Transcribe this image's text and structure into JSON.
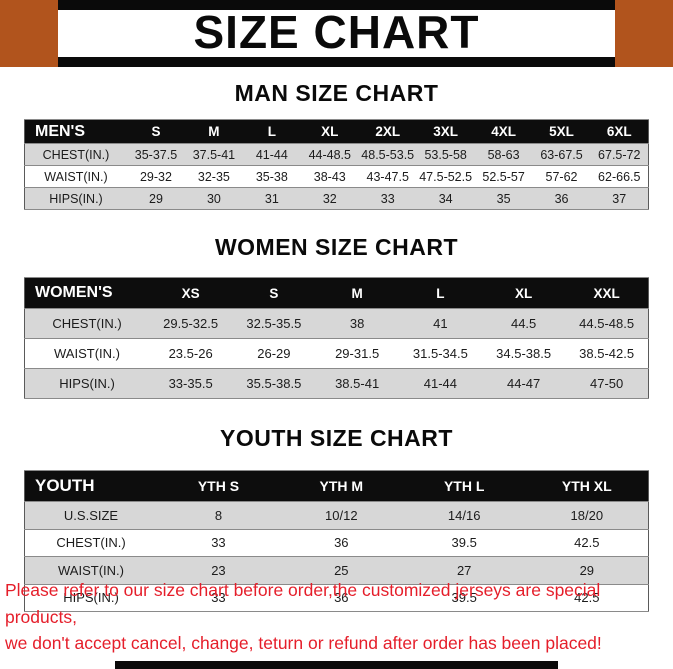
{
  "title": "SIZE CHART",
  "colors": {
    "accent_orange": "#b1541d",
    "header_black": "#0d0d0d",
    "row_shade_gray": "#d7d7d7",
    "footer_red": "#e51e2a"
  },
  "sections": [
    {
      "heading": "MAN SIZE CHART",
      "table": {
        "header": [
          "MEN'S",
          "S",
          "M",
          "L",
          "XL",
          "2XL",
          "3XL",
          "4XL",
          "5XL",
          "6XL"
        ],
        "rows": [
          [
            "CHEST(IN.)",
            "35-37.5",
            "37.5-41",
            "41-44",
            "44-48.5",
            "48.5-53.5",
            "53.5-58",
            "58-63",
            "63-67.5",
            "67.5-72"
          ],
          [
            "WAIST(IN.)",
            "29-32",
            "32-35",
            "35-38",
            "38-43",
            "43-47.5",
            "47.5-52.5",
            "52.5-57",
            "57-62",
            "62-66.5"
          ],
          [
            "HIPS(IN.)",
            "29",
            "30",
            "31",
            "32",
            "33",
            "34",
            "35",
            "36",
            "37"
          ]
        ]
      }
    },
    {
      "heading": "WOMEN SIZE CHART",
      "table": {
        "header": [
          "WOMEN'S",
          "XS",
          "S",
          "M",
          "L",
          "XL",
          "XXL"
        ],
        "rows": [
          [
            "CHEST(IN.)",
            "29.5-32.5",
            "32.5-35.5",
            "38",
            "41",
            "44.5",
            "44.5-48.5"
          ],
          [
            "WAIST(IN.)",
            "23.5-26",
            "26-29",
            "29-31.5",
            "31.5-34.5",
            "34.5-38.5",
            "38.5-42.5"
          ],
          [
            "HIPS(IN.)",
            "33-35.5",
            "35.5-38.5",
            "38.5-41",
            "41-44",
            "44-47",
            "47-50"
          ]
        ]
      }
    },
    {
      "heading": "YOUTH SIZE CHART",
      "table": {
        "header": [
          "YOUTH",
          "YTH S",
          "YTH M",
          "YTH L",
          "YTH XL"
        ],
        "rows": [
          [
            "U.S.SIZE",
            "8",
            "10/12",
            "14/16",
            "18/20"
          ],
          [
            "CHEST(IN.)",
            "33",
            "36",
            "39.5",
            "42.5"
          ],
          [
            "WAIST(IN.)",
            "23",
            "25",
            "27",
            "29"
          ],
          [
            "HIPS(IN.)",
            "33",
            "36",
            "39.5",
            "42.5"
          ]
        ]
      }
    }
  ],
  "footer": {
    "line1": "Please refer to our size chart before order,the customized jerseys are special products,",
    "line2": "we don't accept cancel, change, teturn or refund after order has been placed!"
  }
}
